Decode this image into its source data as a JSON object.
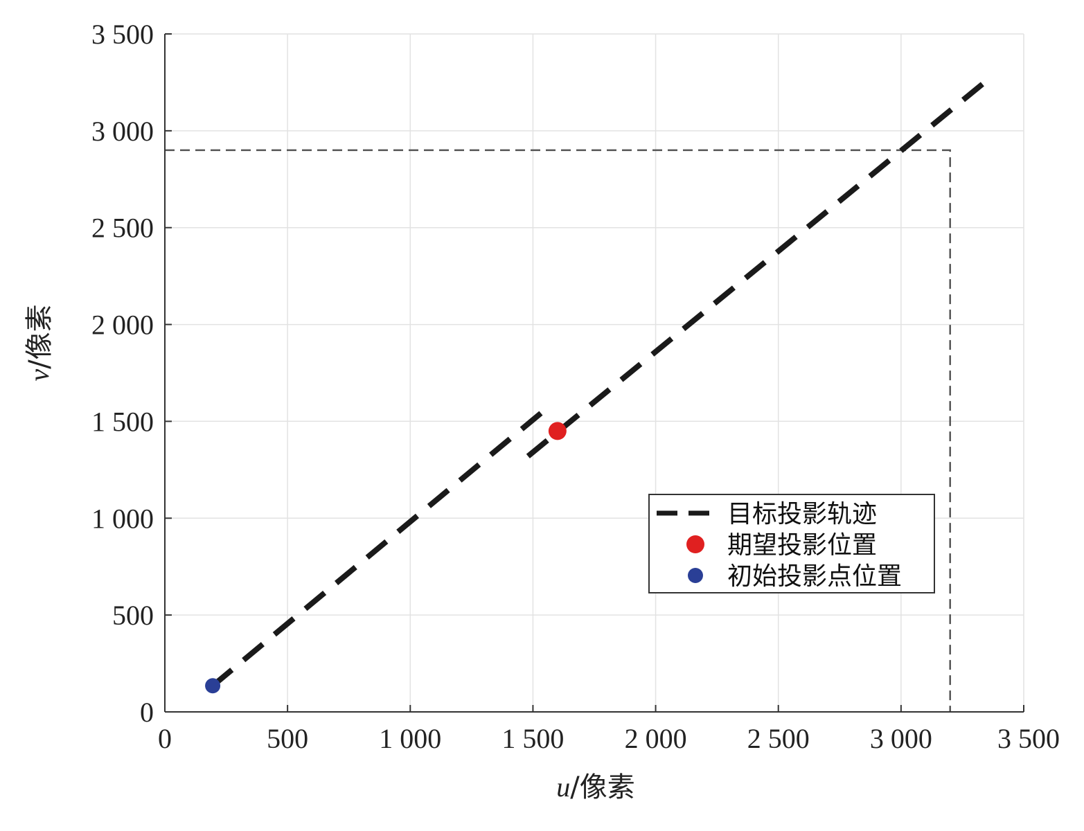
{
  "chart_data": {
    "type": "line",
    "title": "",
    "xlabel": {
      "var": "u",
      "unit": "/像素"
    },
    "ylabel": {
      "var": "v",
      "unit": "/像素"
    },
    "xlim": [
      0,
      3500
    ],
    "ylim": [
      0,
      3500
    ],
    "xticks": [
      0,
      500,
      1000,
      1500,
      2000,
      2500,
      3000,
      3500
    ],
    "yticks": [
      0,
      500,
      1000,
      1500,
      2000,
      2500,
      3000,
      3500
    ],
    "xtick_labels": [
      "0",
      "500",
      "1 000",
      "1 500",
      "2 000",
      "2 500",
      "3 000",
      "3 500"
    ],
    "ytick_labels": [
      "0",
      "500",
      "1 000",
      "1 500",
      "2 000",
      "2 500",
      "3 000",
      "3 500"
    ],
    "grid": true,
    "legend_position": "lower-right",
    "series": [
      {
        "name": "目标投影轨迹",
        "style": "dashed",
        "color": "#1a1a1a",
        "segments": [
          {
            "x": [
              195,
              1540
            ],
            "y": [
              135,
              1550
            ]
          },
          {
            "x": [
              1480,
              3350
            ],
            "y": [
              1320,
              3260
            ]
          }
        ]
      },
      {
        "name": "期望投影位置",
        "style": "marker",
        "color": "#e02020",
        "x": [
          1600
        ],
        "y": [
          1450
        ]
      },
      {
        "name": "初始投影点位置",
        "style": "marker",
        "color": "#2a3f96",
        "x": [
          195
        ],
        "y": [
          135
        ]
      }
    ],
    "reference_lines": [
      {
        "x": [
          0,
          3200,
          3200
        ],
        "y": [
          2900,
          2900,
          0
        ],
        "style": "thin-dashed",
        "color": "#555555"
      }
    ]
  }
}
